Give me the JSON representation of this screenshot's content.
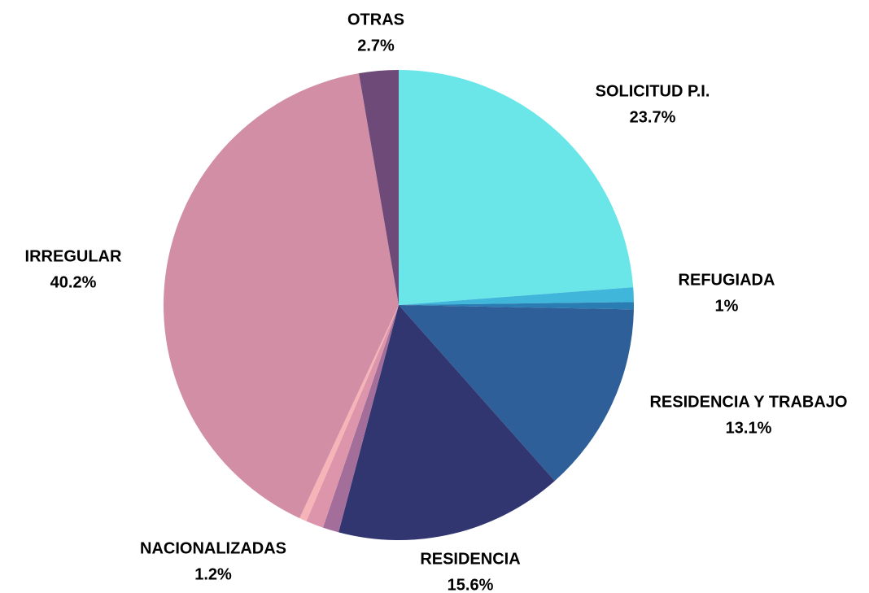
{
  "chart_data": {
    "type": "pie",
    "categories": [
      "SOLICITUD P.I.",
      "REFUGIADA",
      null,
      "RESIDENCIA Y TRABAJO",
      "RESIDENCIA",
      null,
      "NACIONALIZADAS",
      null,
      "IRREGULAR",
      "OTRAS"
    ],
    "values": [
      23.7,
      1,
      0.5,
      13.1,
      15.6,
      1.1,
      1.2,
      0.5,
      40.2,
      2.7
    ],
    "value_labels": [
      "23.7%",
      "1%",
      null,
      "13.1%",
      "15.6%",
      null,
      "1.2%",
      null,
      "40.2%",
      "2.7%"
    ],
    "colors": [
      "#6ae6e9",
      "#3fb6da",
      "#2a7db3",
      "#2e5f98",
      "#313570",
      "#a46e9b",
      "#dc95aa",
      "#f6b4b8",
      "#d28ea5",
      "#6e4a78"
    ]
  }
}
